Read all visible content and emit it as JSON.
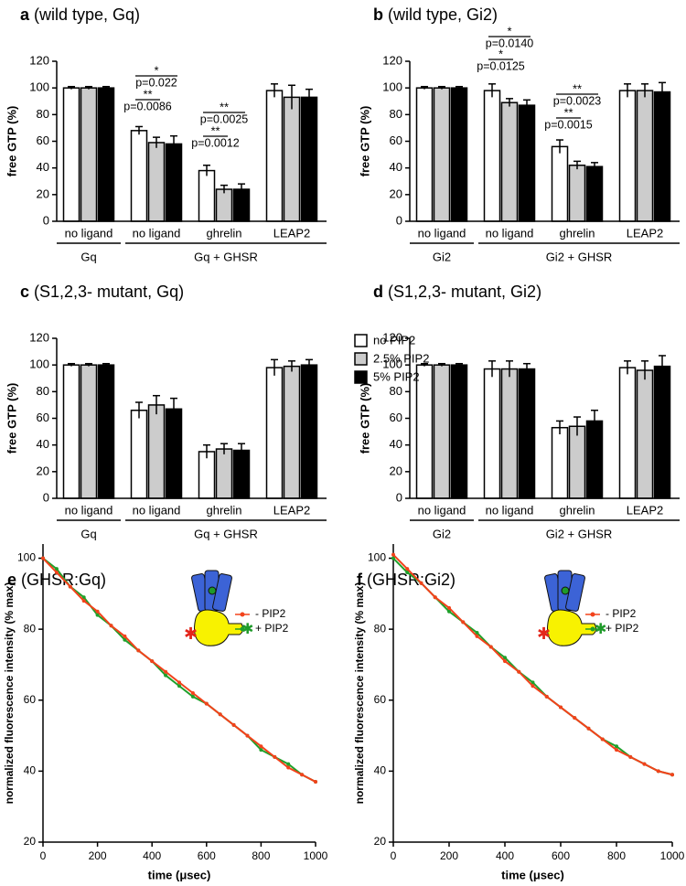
{
  "legend": {
    "items": [
      {
        "name": "no PIP2"
      },
      {
        "name": "2.5% PIP2"
      },
      {
        "name": "5% PIP2"
      }
    ]
  },
  "chart_data": [
    {
      "type": "bar",
      "panel": "a",
      "title": "(wild type, Gq)",
      "ylabel": "free GTP (%)",
      "categories": [
        "no ligand",
        "no ligand",
        "ghrelin",
        "LEAP2"
      ],
      "groups": [
        {
          "label": "Gq"
        },
        {
          "label": "Gq + GHSR"
        }
      ],
      "series": [
        {
          "color": "#ffffff",
          "values": [
            100,
            68,
            38,
            98
          ],
          "errors": [
            1,
            3,
            4,
            5
          ]
        },
        {
          "color": "#cccccc",
          "values": [
            100,
            59,
            24,
            93
          ],
          "errors": [
            1,
            4,
            3,
            9
          ]
        },
        {
          "color": "#000000",
          "values": [
            100,
            58,
            24,
            93
          ],
          "errors": [
            1,
            6,
            4,
            6
          ]
        }
      ],
      "ylim": [
        0,
        120
      ],
      "yticks": [
        0,
        20,
        40,
        60,
        80,
        100,
        120
      ],
      "annotations": [
        {
          "stars": "*",
          "p": "p=0.022"
        },
        {
          "stars": "**",
          "p": "p=0.0086"
        },
        {
          "stars": "**",
          "p": "p=0.0025"
        },
        {
          "stars": "**",
          "p": "p=0.0012"
        }
      ]
    },
    {
      "type": "bar",
      "panel": "b",
      "title": "(wild type, Gi2)",
      "ylabel": "free GTP (%)",
      "categories": [
        "no ligand",
        "no ligand",
        "ghrelin",
        "LEAP2"
      ],
      "groups": [
        {
          "label": "Gi2"
        },
        {
          "label": "Gi2 + GHSR"
        }
      ],
      "series": [
        {
          "color": "#ffffff",
          "values": [
            100,
            98,
            56,
            98
          ],
          "errors": [
            1,
            5,
            5,
            5
          ]
        },
        {
          "color": "#cccccc",
          "values": [
            100,
            89,
            42,
            98
          ],
          "errors": [
            1,
            3,
            3,
            5
          ]
        },
        {
          "color": "#000000",
          "values": [
            100,
            87,
            41,
            97
          ],
          "errors": [
            1,
            4,
            3,
            7
          ]
        }
      ],
      "ylim": [
        0,
        120
      ],
      "yticks": [
        0,
        20,
        40,
        60,
        80,
        100,
        120
      ],
      "annotations": [
        {
          "stars": "*",
          "p": "p=0.0140"
        },
        {
          "stars": "*",
          "p": "p=0.0125"
        },
        {
          "stars": "**",
          "p": "p=0.0023"
        },
        {
          "stars": "**",
          "p": "p=0.0015"
        }
      ]
    },
    {
      "type": "bar",
      "panel": "c",
      "title": "(S1,2,3- mutant, Gq)",
      "ylabel": "free GTP (%)",
      "categories": [
        "no ligand",
        "no ligand",
        "ghrelin",
        "LEAP2"
      ],
      "groups": [
        {
          "label": "Gq"
        },
        {
          "label": "Gq + GHSR"
        }
      ],
      "series": [
        {
          "color": "#ffffff",
          "values": [
            100,
            66,
            35,
            98
          ],
          "errors": [
            1,
            6,
            5,
            6
          ]
        },
        {
          "color": "#cccccc",
          "values": [
            100,
            70,
            37,
            99
          ],
          "errors": [
            1,
            7,
            4,
            4
          ]
        },
        {
          "color": "#000000",
          "values": [
            100,
            67,
            36,
            100
          ],
          "errors": [
            1,
            8,
            5,
            4
          ]
        }
      ],
      "ylim": [
        0,
        120
      ],
      "yticks": [
        0,
        20,
        40,
        60,
        80,
        100,
        120
      ]
    },
    {
      "type": "bar",
      "panel": "d",
      "title": "(S1,2,3- mutant, Gi2)",
      "ylabel": "free GTP (%)",
      "categories": [
        "no ligand",
        "no ligand",
        "ghrelin",
        "LEAP2"
      ],
      "groups": [
        {
          "label": "Gi2"
        },
        {
          "label": "Gi2 + GHSR"
        }
      ],
      "series": [
        {
          "color": "#ffffff",
          "values": [
            100,
            97,
            53,
            98
          ],
          "errors": [
            1,
            6,
            5,
            5
          ]
        },
        {
          "color": "#cccccc",
          "values": [
            100,
            97,
            54,
            96
          ],
          "errors": [
            1,
            6,
            7,
            7
          ]
        },
        {
          "color": "#000000",
          "values": [
            100,
            97,
            58,
            99
          ],
          "errors": [
            1,
            4,
            8,
            8
          ]
        }
      ],
      "ylim": [
        0,
        120
      ],
      "yticks": [
        0,
        20,
        40,
        60,
        80,
        100,
        120
      ]
    },
    {
      "type": "scatter",
      "panel": "e",
      "title": "(GHSR:Gq)",
      "xlabel": "time (μsec)",
      "ylabel": "normalized fluorescence intensity (% max)",
      "x": [
        0,
        50,
        100,
        150,
        200,
        250,
        300,
        350,
        400,
        450,
        500,
        550,
        600,
        650,
        700,
        750,
        800,
        850,
        900,
        950,
        1000
      ],
      "series": [
        {
          "name": "+ PIP2",
          "color": "#1fa02a",
          "values": [
            100,
            97,
            92,
            89,
            84,
            81,
            77,
            74,
            71,
            67,
            64,
            61,
            59,
            56,
            53,
            50,
            46,
            44,
            42,
            39,
            37
          ]
        },
        {
          "name": "- PIP2",
          "color": "#f2421b",
          "values": [
            100,
            96,
            92,
            88,
            85,
            81,
            78,
            74,
            71,
            68,
            65,
            62,
            59,
            56,
            53,
            50,
            47,
            44,
            41,
            39,
            37
          ]
        }
      ],
      "xlim": [
        0,
        1000
      ],
      "xticks": [
        0,
        200,
        400,
        600,
        800,
        1000
      ],
      "ylim": [
        20,
        104
      ],
      "yticks": [
        20,
        40,
        60,
        80,
        100
      ]
    },
    {
      "type": "scatter",
      "panel": "f",
      "title": "(GHSR:Gi2)",
      "xlabel": "time (μsec)",
      "ylabel": "normalized fluorescence intensity (% max)",
      "x": [
        0,
        50,
        100,
        150,
        200,
        250,
        300,
        350,
        400,
        450,
        500,
        550,
        600,
        650,
        700,
        750,
        800,
        850,
        900,
        950,
        1000
      ],
      "series": [
        {
          "name": "+ PIP2",
          "color": "#1fa02a",
          "values": [
            100,
            96,
            93,
            89,
            85,
            82,
            79,
            75,
            72,
            68,
            65,
            61,
            58,
            55,
            52,
            49,
            47,
            44,
            42,
            40,
            39
          ]
        },
        {
          "name": "- PIP2",
          "color": "#f2421b",
          "values": [
            101,
            97,
            93,
            89,
            86,
            82,
            78,
            75,
            71,
            68,
            64,
            61,
            58,
            55,
            52,
            49,
            46,
            44,
            42,
            40,
            39
          ]
        }
      ],
      "xlim": [
        0,
        1000
      ],
      "xticks": [
        0,
        200,
        400,
        600,
        800,
        1000
      ],
      "ylim": [
        20,
        104
      ],
      "yticks": [
        20,
        40,
        60,
        80,
        100
      ]
    }
  ]
}
